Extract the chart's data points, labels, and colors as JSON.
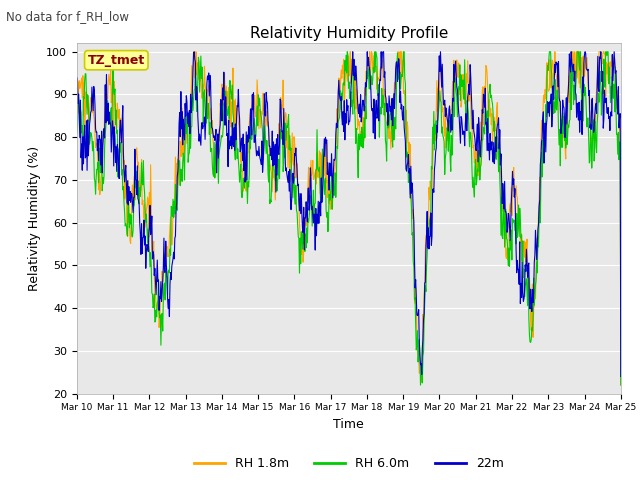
{
  "title": "Relativity Humidity Profile",
  "suptitle": "No data for f_RH_low",
  "xlabel": "Time",
  "ylabel": "Relativity Humidity (%)",
  "ylim": [
    20,
    102
  ],
  "yticks": [
    20,
    30,
    40,
    50,
    60,
    70,
    80,
    90,
    100
  ],
  "colors": {
    "RH_1p8m": "#FFA500",
    "RH_6p0m": "#00CC00",
    "22m": "#0000CD"
  },
  "legend_labels": [
    "RH 1.8m",
    "RH 6.0m",
    "22m"
  ],
  "legend_colors": [
    "#FFA500",
    "#00CC00",
    "#0000CD"
  ],
  "annotation_text": "TZ_tmet",
  "annotation_color": "#8B0000",
  "annotation_bg": "#FFFF99",
  "annotation_edge": "#CCCC00",
  "bg_color": "#E8E8E8",
  "n_days": 15,
  "start_day": 10,
  "tick_labels": [
    "Mar 10",
    "Mar 11",
    "Mar 12",
    "Mar 13",
    "Mar 14",
    "Mar 15",
    "Mar 16",
    "Mar 17",
    "Mar 18",
    "Mar 19",
    "Mar 20",
    "Mar 21",
    "Mar 22",
    "Mar 23",
    "Mar 24",
    "Mar 25"
  ]
}
